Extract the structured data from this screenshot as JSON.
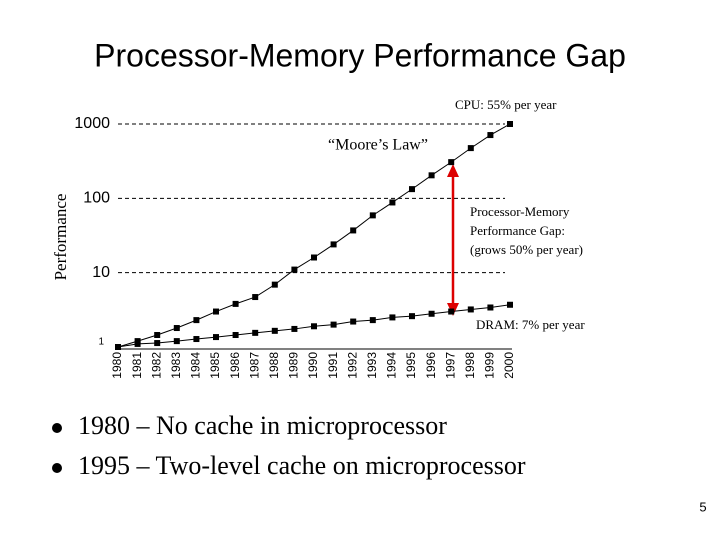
{
  "title": "Processor-Memory Performance Gap",
  "chart_data": {
    "type": "line",
    "y_label": "Performance",
    "cpu_annotation": "CPU: 55% per year",
    "moore_annotation": "“Moore’s Law”",
    "gap_annotation": [
      "Processor-Memory",
      "Performance Gap:",
      "(grows 50% per year)"
    ],
    "dram_annotation": "DRAM: 7% per year",
    "categories": [
      "1980",
      "1981",
      "1982",
      "1983",
      "1984",
      "1985",
      "1986",
      "1987",
      "1988",
      "1989",
      "1990",
      "1991",
      "1992",
      "1993",
      "1994",
      "1995",
      "1996",
      "1997",
      "1998",
      "1999",
      "2000"
    ],
    "series": [
      {
        "color": "#000000",
        "values": [
          1,
          1.2,
          1.45,
          1.8,
          2.3,
          3.0,
          3.8,
          4.7,
          6.9,
          11,
          16,
          24,
          37,
          59,
          88,
          133,
          204,
          307,
          474,
          710,
          1000
        ]
      },
      {
        "color": "#000000",
        "values": [
          1,
          1.1,
          1.13,
          1.2,
          1.28,
          1.36,
          1.45,
          1.55,
          1.65,
          1.75,
          1.9,
          2.0,
          2.2,
          2.3,
          2.5,
          2.6,
          2.8,
          3.0,
          3.2,
          3.4,
          3.7
        ]
      }
    ],
    "log_scale": true,
    "grid": true,
    "ylim": [
      1,
      1000
    ],
    "yticks": [
      1,
      10,
      100,
      1000
    ]
  },
  "bullets": [
    "1980 – No cache in microprocessor",
    "1995 – Two-level cache on microprocessor"
  ],
  "page_number": 5
}
